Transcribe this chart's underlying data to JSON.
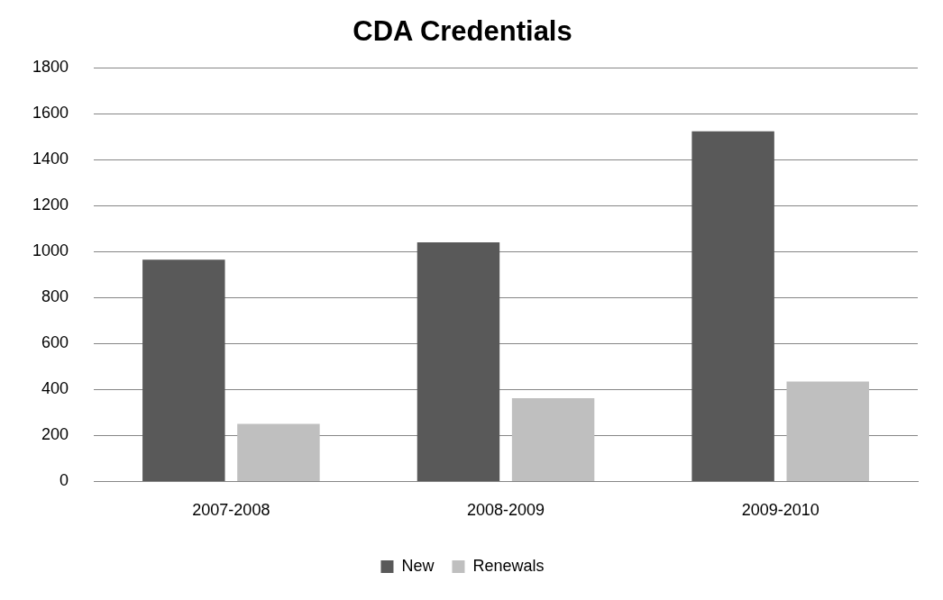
{
  "chart_data": {
    "type": "bar",
    "title": "CDA Credentials",
    "categories": [
      "2007-2008",
      "2008-2009",
      "2009-2010"
    ],
    "series": [
      {
        "name": "New",
        "color": "#595959",
        "values": [
          965,
          1040,
          1523
        ]
      },
      {
        "name": "Renewals",
        "color": "#bfbfbf",
        "values": [
          250,
          362,
          435
        ]
      }
    ],
    "ylim": [
      0,
      1800
    ],
    "yticks": [
      0,
      200,
      400,
      600,
      800,
      1000,
      1200,
      1400,
      1600,
      1800
    ],
    "grid": "y",
    "legend": "bottom"
  }
}
